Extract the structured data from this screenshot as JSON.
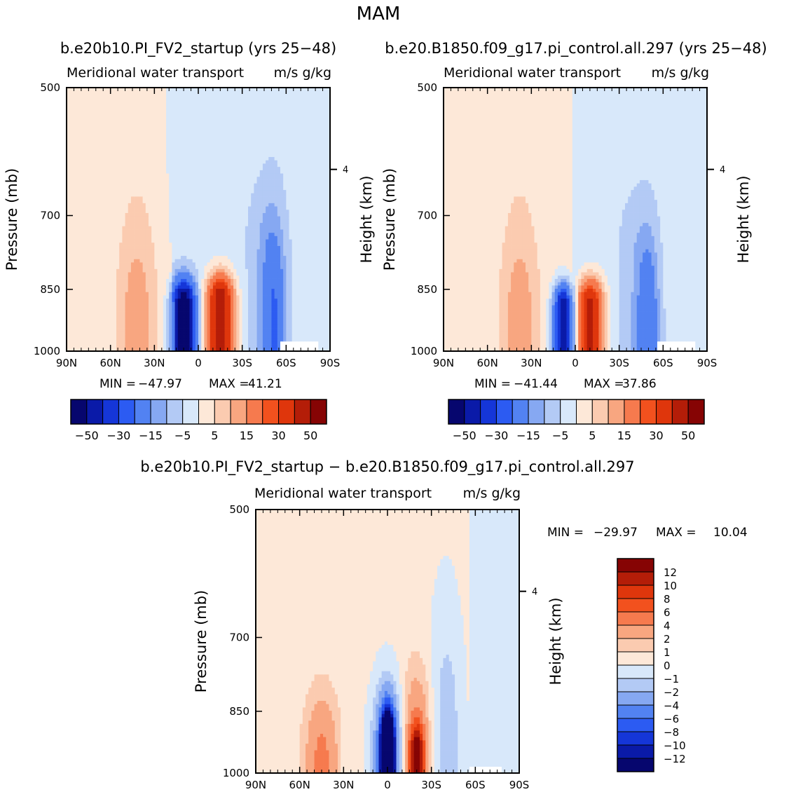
{
  "figure": {
    "title": "MAM",
    "min_label": "MIN =",
    "max_label": "MAX ="
  },
  "chart_data": [
    {
      "type": "contour",
      "panel": "case1",
      "title": "b.e20b10.PI_FV2_startup (yrs 25−48)",
      "left_subtitle": "Meridional water transport",
      "right_subtitle": "m/s g/kg",
      "ylabel": "Pressure (mb)",
      "ylabel_right": "Height (km)",
      "ylim": [
        1000,
        500
      ],
      "xlim": [
        "90N",
        "90S"
      ],
      "x_ticks": [
        "90N",
        "60N",
        "30N",
        "0",
        "30S",
        "60S",
        "90S"
      ],
      "y_ticks": [
        "500",
        "700",
        "850",
        "1000"
      ],
      "height_ticks": [
        "4"
      ],
      "min": "−47.97",
      "max": "41.21",
      "colorbar_labels": [
        "−50",
        "−30",
        "−15",
        "−5",
        "5",
        "15",
        "30",
        "50"
      ],
      "features": [
        {
          "name": "positive cell 10-25S",
          "peak": 41.21,
          "lat": -15,
          "top_p": 790
        },
        {
          "name": "negative cell 0-15N",
          "peak": -47.97,
          "lat": 10,
          "top_p": 810
        },
        {
          "name": "weak positive 30-60N",
          "peak": 8,
          "lat": 42,
          "top_p": 720
        },
        {
          "name": "negative band 40-60S",
          "peak": -15,
          "lat": -52,
          "top_p": 700
        }
      ]
    },
    {
      "type": "contour",
      "panel": "case2",
      "title": "b.e20.B1850.f09_g17.pi_control.all.297 (yrs 25−48)",
      "left_subtitle": "Meridional water transport",
      "right_subtitle": "m/s g/kg",
      "ylabel": "Pressure (mb)",
      "ylabel_right": "Height (km)",
      "ylim": [
        1000,
        500
      ],
      "xlim": [
        "90N",
        "90S"
      ],
      "x_ticks": [
        "90N",
        "60N",
        "30N",
        "0",
        "30S",
        "60S",
        "90S"
      ],
      "y_ticks": [
        "500",
        "700",
        "850",
        "1000"
      ],
      "height_ticks": [
        "4"
      ],
      "min": "−41.44",
      "max": "37.86",
      "colorbar_labels": [
        "−50",
        "−30",
        "−15",
        "−5",
        "5",
        "15",
        "30",
        "50"
      ],
      "features": [
        {
          "name": "positive cell 0-25S",
          "peak": 37.86,
          "lat": -10,
          "top_p": 810
        },
        {
          "name": "negative cell 0-15N",
          "peak": -41.44,
          "lat": 8,
          "top_p": 830
        },
        {
          "name": "weak positive 30-60N",
          "peak": 8,
          "lat": 38,
          "top_p": 720
        },
        {
          "name": "negative band 40-60S",
          "peak": -15,
          "lat": -50,
          "top_p": 720
        }
      ]
    },
    {
      "type": "contour",
      "panel": "difference",
      "title": "b.e20b10.PI_FV2_startup − b.e20.B1850.f09_g17.pi_control.all.297",
      "left_subtitle": "Meridional water transport",
      "right_subtitle": "m/s g/kg",
      "ylabel": "Pressure (mb)",
      "ylabel_right": "Height (km)",
      "ylim": [
        1000,
        500
      ],
      "xlim": [
        "90N",
        "90S"
      ],
      "x_ticks": [
        "90N",
        "60N",
        "30N",
        "0",
        "30S",
        "60S",
        "90S"
      ],
      "y_ticks": [
        "500",
        "700",
        "850",
        "1000"
      ],
      "height_ticks": [
        "4"
      ],
      "min": "−29.97",
      "max": "10.04",
      "colorbar_labels": [
        "12",
        "10",
        "8",
        "6",
        "4",
        "2",
        "1",
        "0",
        "−1",
        "−2",
        "−4",
        "−6",
        "−8",
        "−10",
        "−12"
      ],
      "features": [
        {
          "name": "negative core at equator",
          "peak": -29.97,
          "lat": 0,
          "top_p": 830
        },
        {
          "name": "positive cell 15-30S",
          "peak": 10.04,
          "lat": -20,
          "top_p": 830
        },
        {
          "name": "weak positive 30-60N",
          "peak": 4,
          "lat": 45,
          "top_p": 760
        }
      ]
    }
  ],
  "colors": {
    "panel_scale": [
      "#06066e",
      "#0a1aa8",
      "#1536d8",
      "#2c5bf2",
      "#5282f2",
      "#86a8f2",
      "#b3caf5",
      "#d8e8fa",
      "#fde8d8",
      "#fbcbb0",
      "#f8a680",
      "#f67a4e",
      "#f2511e",
      "#df360c",
      "#b41d08",
      "#860404"
    ],
    "diff_scale": [
      "#06066e",
      "#0a1aa8",
      "#1536d8",
      "#2c5bf2",
      "#5282f2",
      "#86a8f2",
      "#b3caf5",
      "#d8e8fa",
      "#fde8d8",
      "#fbcbb0",
      "#f8a680",
      "#f67a4e",
      "#f2511e",
      "#df360c",
      "#b41d08",
      "#860404"
    ]
  }
}
